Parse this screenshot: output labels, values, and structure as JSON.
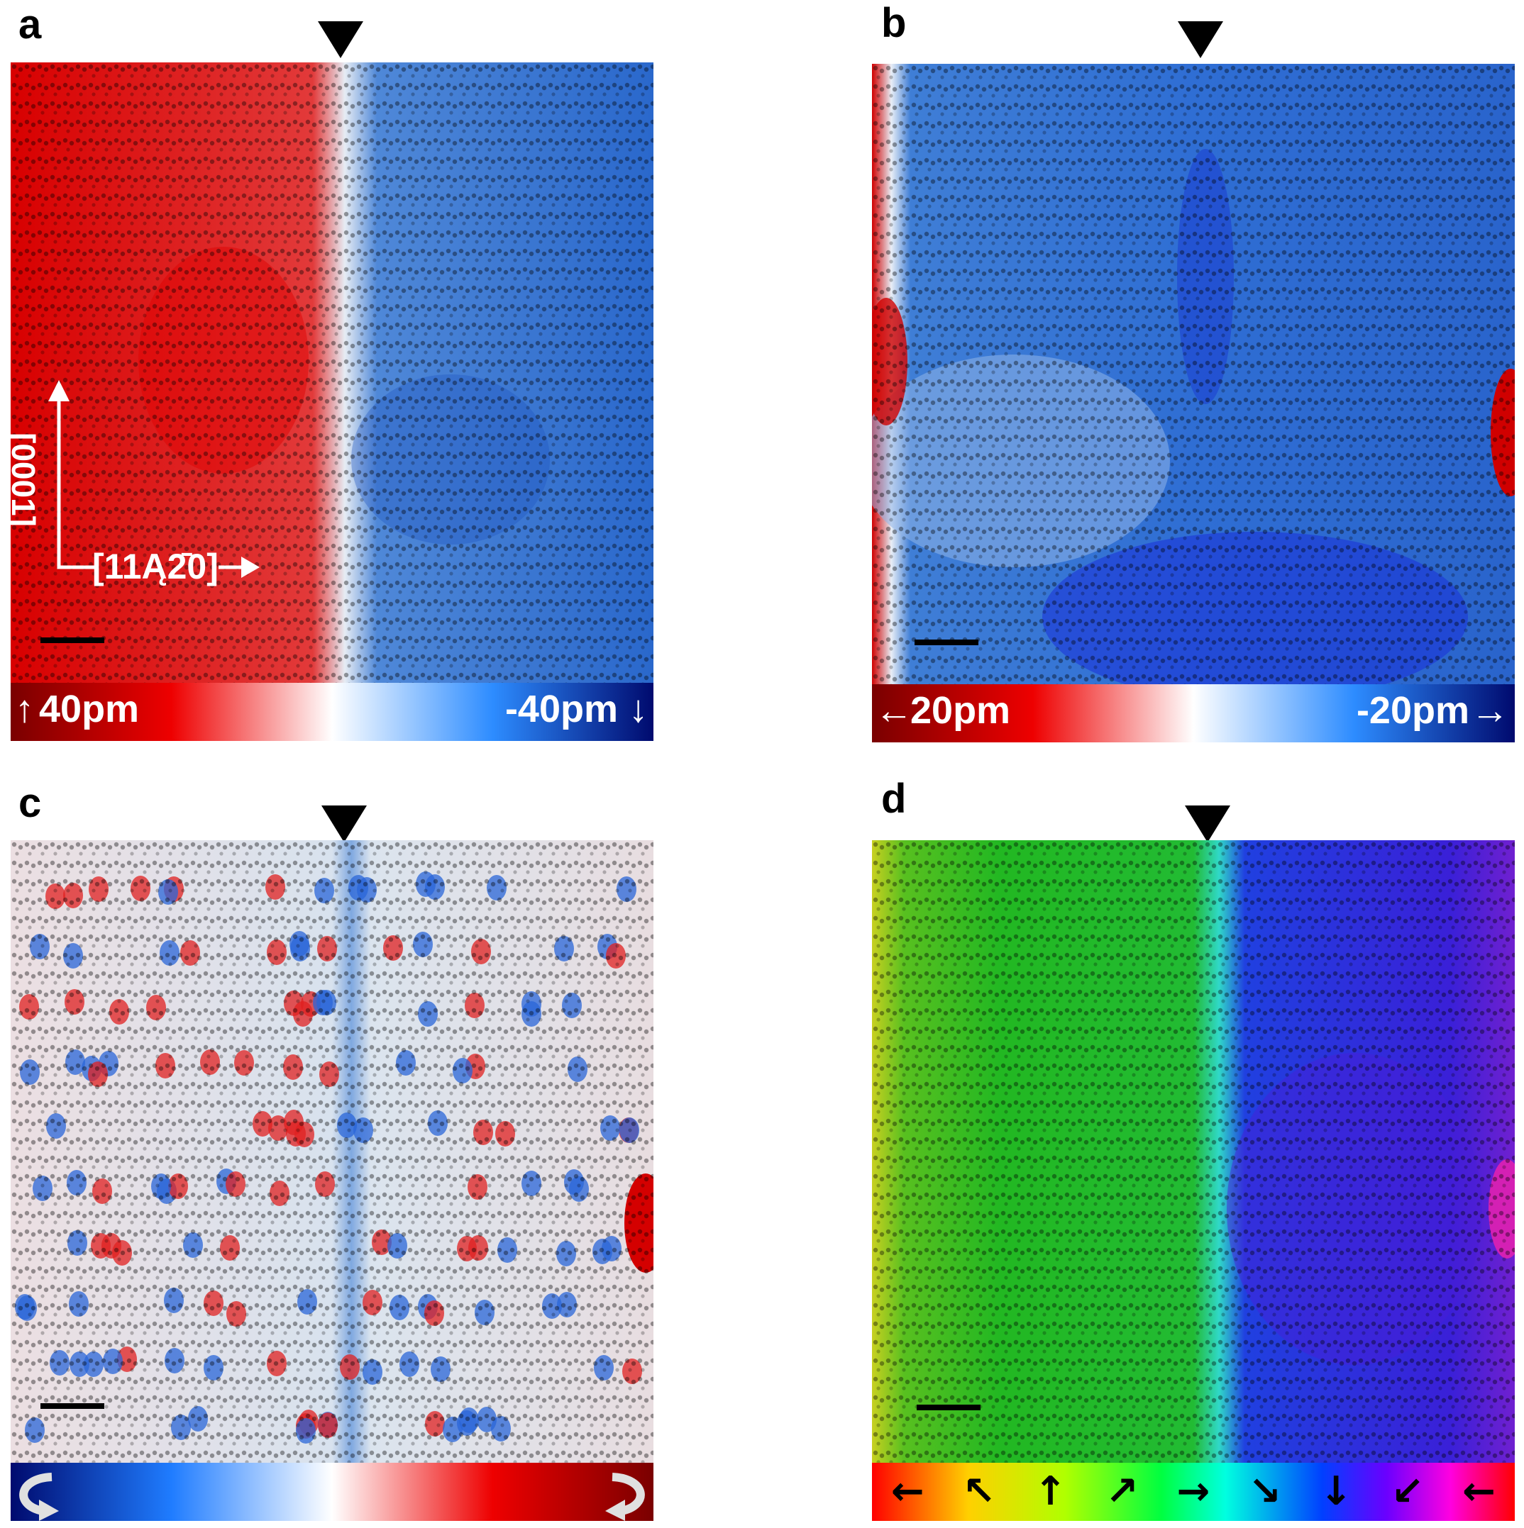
{
  "panels": {
    "a": {
      "label": "a",
      "colorbar": {
        "left": "40pm",
        "right": "-40pm",
        "left_arrow": "↑",
        "right_arrow": "↓"
      },
      "axes": {
        "vertical": "[0001]",
        "horizontal": "[11Ą2̄0]"
      }
    },
    "b": {
      "label": "b",
      "colorbar": {
        "left": "20pm",
        "right": "-20pm",
        "left_arrow": "←",
        "right_arrow": "→"
      }
    },
    "c": {
      "label": "c"
    },
    "d": {
      "label": "d",
      "colorwheel_arrows": [
        "←",
        "↖",
        "↑",
        "↗",
        "→",
        "↘",
        "↓",
        "↙",
        "←"
      ]
    }
  },
  "colors": {
    "red": "#d40000",
    "blue": "#1f5fd0",
    "green": "#1fb51f",
    "deep_blue": "#1a1ae0"
  }
}
